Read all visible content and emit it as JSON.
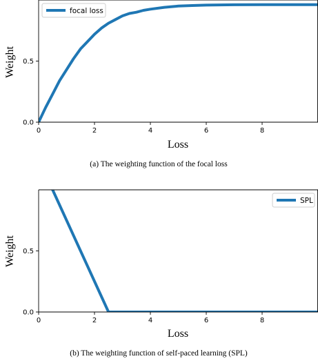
{
  "chart_data": [
    {
      "type": "line",
      "caption": "(a) The weighting function of the focal loss",
      "xlabel": "Loss",
      "ylabel": "Weight",
      "xlim": [
        0,
        10
      ],
      "ylim": [
        0,
        1
      ],
      "xticks": [
        "0",
        "2",
        "4",
        "6",
        "8"
      ],
      "yticks": [
        "0.0",
        "0.5"
      ],
      "legend_position": "top-left",
      "grid": false,
      "series": [
        {
          "name": "focal loss",
          "color": "#1f77b4",
          "x": [
            0,
            0.25,
            0.5,
            0.75,
            1.0,
            1.25,
            1.5,
            1.75,
            2.0,
            2.25,
            2.5,
            2.75,
            3.0,
            3.25,
            3.5,
            3.75,
            4.0,
            4.5,
            5.0,
            5.5,
            6.0,
            6.5,
            7.0,
            8.0,
            9.0,
            10.0
          ],
          "y": [
            0.0,
            0.12,
            0.23,
            0.34,
            0.43,
            0.52,
            0.6,
            0.66,
            0.72,
            0.77,
            0.81,
            0.84,
            0.87,
            0.89,
            0.9,
            0.915,
            0.925,
            0.94,
            0.95,
            0.955,
            0.958,
            0.96,
            0.961,
            0.962,
            0.962,
            0.962
          ]
        }
      ]
    },
    {
      "type": "line",
      "caption": "(b) The weighting function of self-paced learning (SPL)",
      "xlabel": "Loss",
      "ylabel": "Weight",
      "xlim": [
        0,
        10
      ],
      "ylim": [
        0,
        1
      ],
      "xticks": [
        "0",
        "2",
        "4",
        "6",
        "8"
      ],
      "yticks": [
        "0.0",
        "0.5"
      ],
      "legend_position": "top-right",
      "grid": false,
      "series": [
        {
          "name": "SPL",
          "color": "#1f77b4",
          "x": [
            0.0,
            0.5,
            2.5,
            10.0
          ],
          "y": [
            1.25,
            1.0,
            0.0,
            0.0
          ]
        }
      ]
    }
  ]
}
